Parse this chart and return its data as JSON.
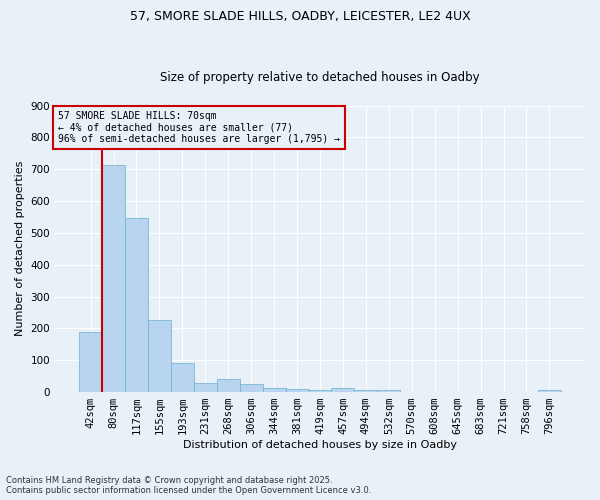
{
  "title_line1": "57, SMORE SLADE HILLS, OADBY, LEICESTER, LE2 4UX",
  "title_line2": "Size of property relative to detached houses in Oadby",
  "xlabel": "Distribution of detached houses by size in Oadby",
  "ylabel": "Number of detached properties",
  "bar_color": "#b8d4ee",
  "bar_edge_color": "#6aaed6",
  "marker_line_color": "#cc0000",
  "background_color": "#e8f0f8",
  "grid_color": "#ffffff",
  "categories": [
    "42sqm",
    "80sqm",
    "117sqm",
    "155sqm",
    "193sqm",
    "231sqm",
    "268sqm",
    "306sqm",
    "344sqm",
    "381sqm",
    "419sqm",
    "457sqm",
    "494sqm",
    "532sqm",
    "570sqm",
    "608sqm",
    "645sqm",
    "683sqm",
    "721sqm",
    "758sqm",
    "796sqm"
  ],
  "values": [
    188,
    713,
    546,
    225,
    90,
    30,
    40,
    26,
    12,
    10,
    5,
    12,
    7,
    7,
    0,
    0,
    0,
    0,
    0,
    0,
    5
  ],
  "annotation_title": "57 SMORE SLADE HILLS: 70sqm",
  "annotation_line2": "← 4% of detached houses are smaller (77)",
  "annotation_line3": "96% of semi-detached houses are larger (1,795) →",
  "footer_line1": "Contains HM Land Registry data © Crown copyright and database right 2025.",
  "footer_line2": "Contains public sector information licensed under the Open Government Licence v3.0.",
  "ylim": [
    0,
    900
  ],
  "yticks": [
    0,
    100,
    200,
    300,
    400,
    500,
    600,
    700,
    800,
    900
  ],
  "title_fontsize": 9,
  "subtitle_fontsize": 8.5,
  "axis_label_fontsize": 8,
  "tick_fontsize": 7.5,
  "annotation_fontsize": 7,
  "footer_fontsize": 6
}
